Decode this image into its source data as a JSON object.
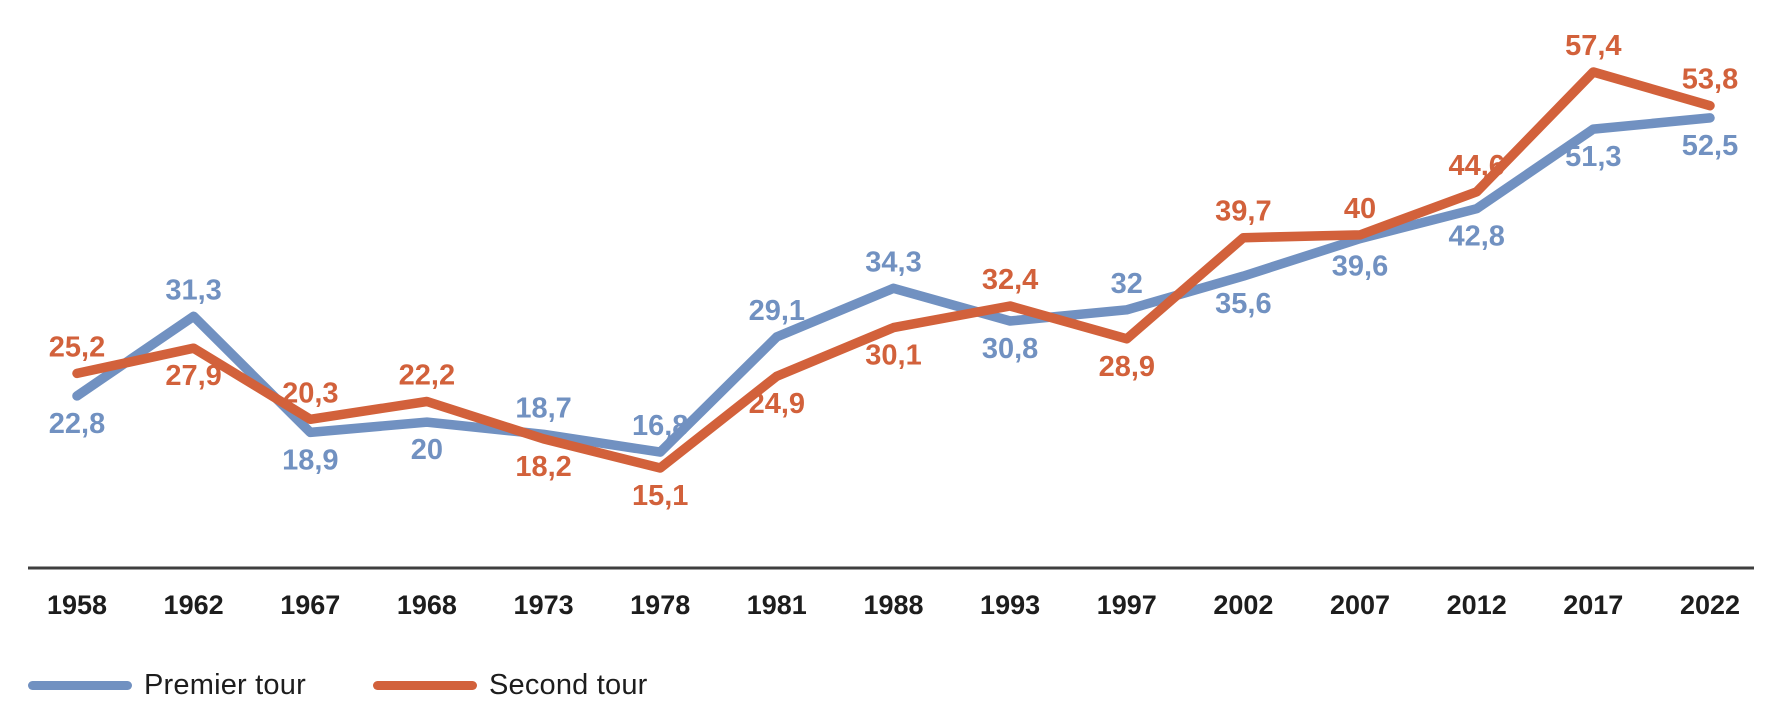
{
  "chart_data": {
    "type": "line",
    "title": "",
    "xlabel": "",
    "ylabel": "",
    "categories": [
      "1958",
      "1962",
      "1967",
      "1968",
      "1973",
      "1978",
      "1981",
      "1988",
      "1993",
      "1997",
      "2002",
      "2007",
      "2012",
      "2017",
      "2022"
    ],
    "series": [
      {
        "name": "Premier tour",
        "color": "#7191c1",
        "values": [
          22.8,
          31.3,
          18.9,
          20,
          18.7,
          16.8,
          29.1,
          34.3,
          30.8,
          32,
          35.6,
          39.6,
          42.8,
          51.3,
          52.5
        ]
      },
      {
        "name": "Second tour",
        "color": "#d2613b",
        "values": [
          25.2,
          27.9,
          20.3,
          22.2,
          18.2,
          15.1,
          24.9,
          30.1,
          32.4,
          28.9,
          39.7,
          40,
          44.6,
          57.4,
          53.8
        ]
      }
    ],
    "data_labels_visible": true,
    "decimal_separator": ",",
    "value_range_visible": [
      15.1,
      57.4
    ],
    "grid": false,
    "y_axis_visible": false,
    "x_axis_line_color": "#3f3f3f",
    "x_tick_label_color": "#1d1d1d",
    "legend_position": "bottom-left",
    "background_color": "#ffffff"
  }
}
